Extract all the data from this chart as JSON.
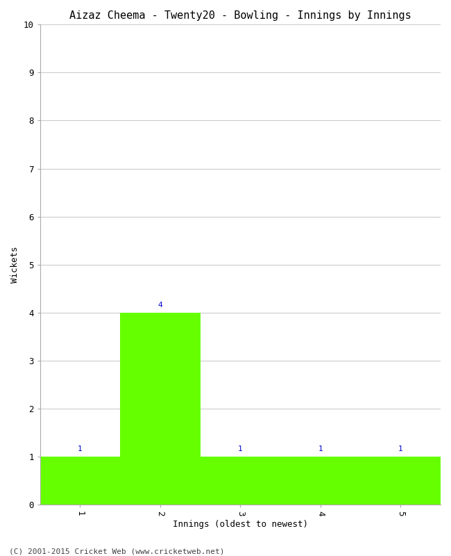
{
  "title": "Aizaz Cheema - Twenty20 - Bowling - Innings by Innings",
  "xlabel": "Innings (oldest to newest)",
  "ylabel": "Wickets",
  "categories": [
    1,
    2,
    3,
    4,
    5
  ],
  "values": [
    1,
    4,
    1,
    1,
    1
  ],
  "bar_color": "#66ff00",
  "bar_edge_color": "#66ff00",
  "ylim": [
    0,
    10
  ],
  "yticks": [
    0,
    1,
    2,
    3,
    4,
    5,
    6,
    7,
    8,
    9,
    10
  ],
  "xtick_labels": [
    "1",
    "2",
    "3",
    "4",
    "5"
  ],
  "label_color": "#0000cc",
  "label_fontsize": 8,
  "title_fontsize": 11,
  "axis_fontsize": 9,
  "tick_fontsize": 9,
  "background_color": "#ffffff",
  "grid_color": "#cccccc",
  "footer": "(C) 2001-2015 Cricket Web (www.cricketweb.net)",
  "footer_fontsize": 8
}
